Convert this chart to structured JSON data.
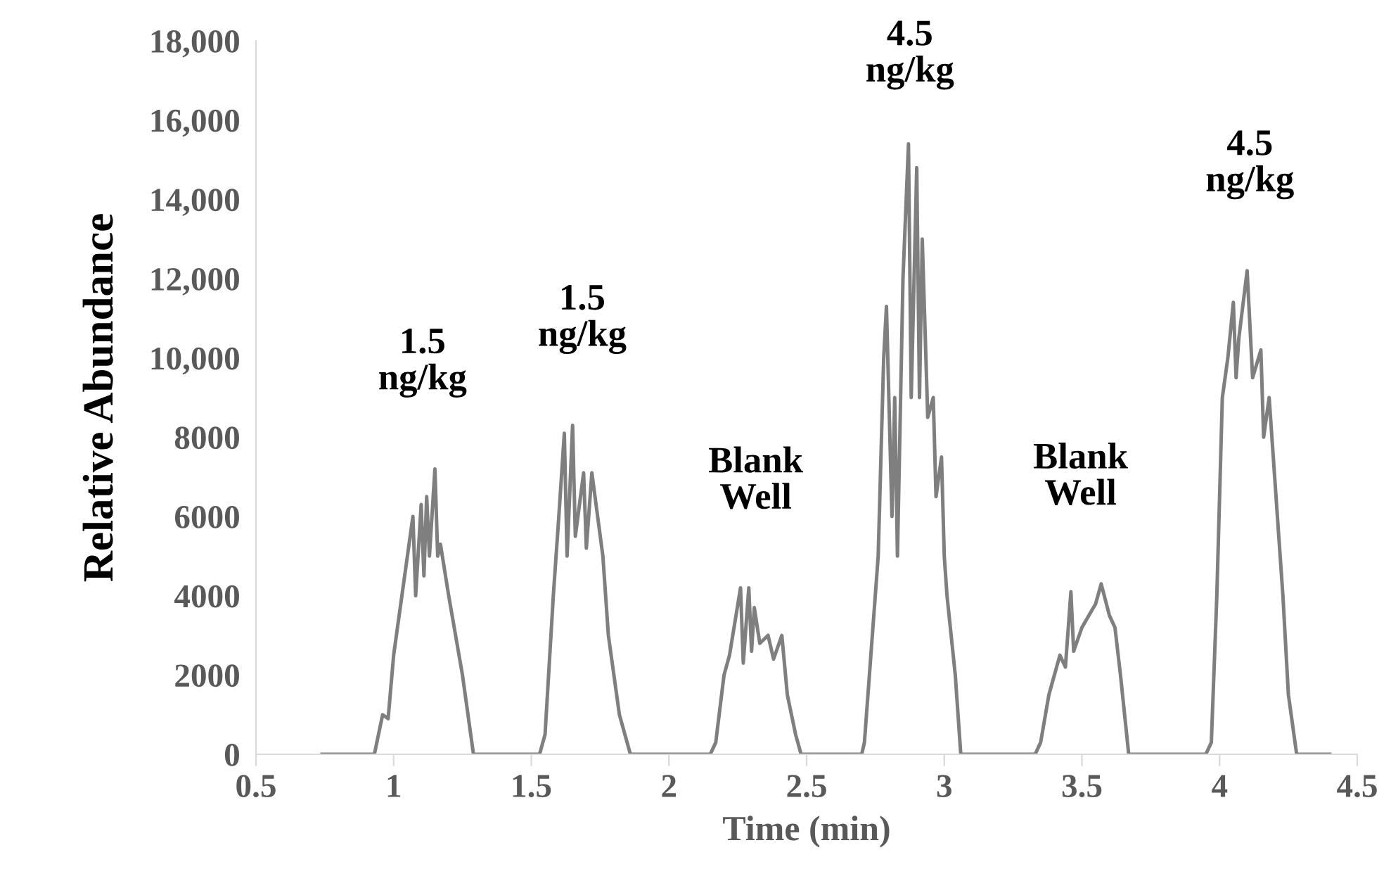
{
  "chart_data": {
    "type": "line",
    "xlabel": "Time (min)",
    "ylabel": "Relative Abundance",
    "xlim": [
      0.5,
      4.5
    ],
    "xticks": [
      0.5,
      {
        "value": 1,
        "label": "1"
      },
      1.5,
      {
        "value": 2,
        "label": "2"
      },
      2.5,
      {
        "value": 3,
        "label": "3"
      },
      3.5,
      {
        "value": 4,
        "label": "4"
      },
      4.5
    ],
    "ylim": [
      0,
      18000
    ],
    "yticks": [
      {
        "value": 0,
        "label": "0"
      },
      {
        "value": 2000,
        "label": "2000"
      },
      {
        "value": 4000,
        "label": "4000"
      },
      {
        "value": 6000,
        "label": "6000"
      },
      {
        "value": 8000,
        "label": "8000"
      },
      {
        "value": 10000,
        "label": "10,000"
      },
      {
        "value": 12000,
        "label": "12,000"
      },
      {
        "value": 14000,
        "label": "14,000"
      },
      {
        "value": 16000,
        "label": "16,000"
      },
      {
        "value": 18000,
        "label": "18,000"
      }
    ],
    "grid": false,
    "legend": false,
    "marker": "none",
    "line_style": "solid",
    "series": [
      {
        "color": "#7f7f7f",
        "x": [
          0.74,
          0.93,
          0.96,
          0.98,
          1.0,
          1.03,
          1.05,
          1.07,
          1.08,
          1.1,
          1.11,
          1.12,
          1.13,
          1.15,
          1.16,
          1.17,
          1.2,
          1.25,
          1.29,
          1.53,
          1.55,
          1.58,
          1.6,
          1.62,
          1.63,
          1.65,
          1.66,
          1.69,
          1.7,
          1.72,
          1.76,
          1.78,
          1.82,
          1.86,
          2.15,
          2.17,
          2.2,
          2.22,
          2.26,
          2.27,
          2.29,
          2.3,
          2.31,
          2.33,
          2.36,
          2.38,
          2.41,
          2.43,
          2.46,
          2.48,
          2.7,
          2.71,
          2.76,
          2.78,
          2.79,
          2.81,
          2.82,
          2.83,
          2.85,
          2.87,
          2.88,
          2.9,
          2.91,
          2.92,
          2.94,
          2.96,
          2.97,
          2.99,
          3.0,
          3.01,
          3.04,
          3.06,
          3.33,
          3.35,
          3.38,
          3.42,
          3.44,
          3.46,
          3.47,
          3.5,
          3.55,
          3.57,
          3.6,
          3.62,
          3.64,
          3.67,
          3.95,
          3.97,
          3.99,
          4.01,
          4.03,
          4.05,
          4.06,
          4.07,
          4.1,
          4.12,
          4.15,
          4.16,
          4.18,
          4.2,
          4.23,
          4.25,
          4.28,
          4.4
        ],
        "values": [
          0,
          0,
          1000,
          900,
          2500,
          4000,
          5000,
          6000,
          4000,
          6300,
          4500,
          6500,
          5000,
          7200,
          5000,
          5300,
          4000,
          2000,
          0,
          0,
          500,
          4000,
          6000,
          8100,
          5000,
          8300,
          5500,
          7100,
          5200,
          7100,
          5000,
          3000,
          1000,
          0,
          0,
          300,
          2000,
          2500,
          4200,
          2300,
          4200,
          2600,
          3700,
          2800,
          3000,
          2400,
          3000,
          1500,
          500,
          0,
          0,
          300,
          5000,
          10000,
          11300,
          6000,
          9000,
          5000,
          12000,
          15400,
          9000,
          14800,
          9000,
          13000,
          8500,
          9000,
          6500,
          7500,
          5000,
          4000,
          2000,
          0,
          0,
          300,
          1500,
          2500,
          2200,
          4100,
          2600,
          3200,
          3800,
          4300,
          3500,
          3200,
          2000,
          0,
          0,
          300,
          4000,
          9000,
          10000,
          11400,
          9500,
          10500,
          12200,
          9500,
          10200,
          8000,
          9000,
          7000,
          4000,
          1500,
          0,
          0
        ]
      }
    ],
    "annotations": [
      "1.5\nng/kg",
      "1.5\nng/kg",
      "Blank\nWell",
      "4.5\nng/kg",
      "Blank\nWell",
      "4.5\nng/kg"
    ]
  }
}
